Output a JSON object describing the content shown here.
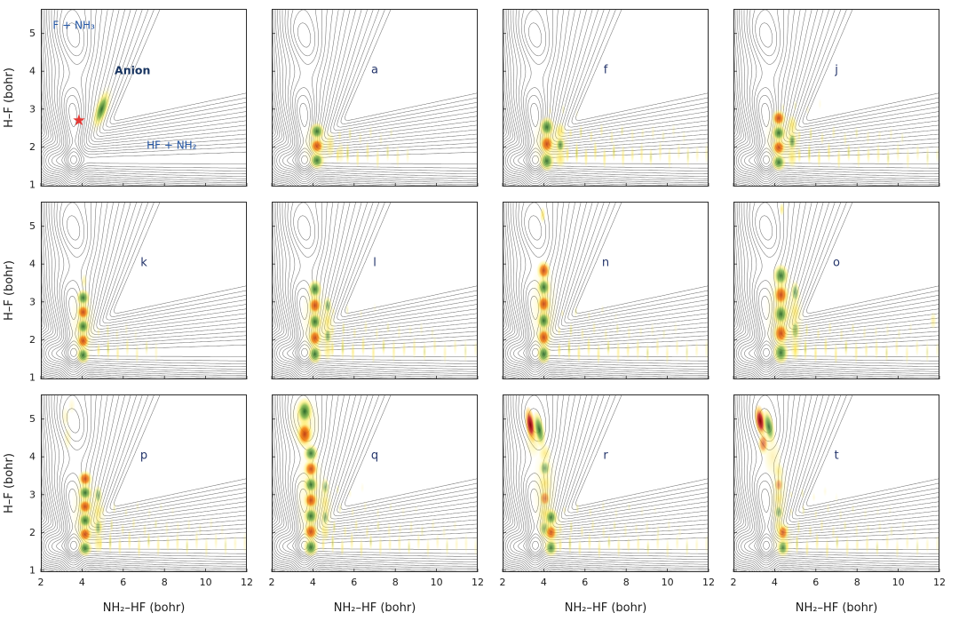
{
  "chart_data": {
    "type": "heatmap",
    "subtype": "multi-panel-contour-grid",
    "nrows": 3,
    "ncols": 4,
    "x_axis": {
      "label": "NH₂–HF (bohr)",
      "range": [
        2,
        12
      ],
      "ticks": [
        2,
        4,
        6,
        8,
        10,
        12
      ],
      "tick_labels": [
        "2",
        "4",
        "6",
        "8",
        "10",
        "12"
      ]
    },
    "y_axis": {
      "label": "H–F (bohr)",
      "range": [
        0.95,
        5.65
      ],
      "ticks": [
        1,
        2,
        3,
        4,
        5
      ],
      "tick_labels": [
        "1",
        "2",
        "3",
        "4",
        "5"
      ]
    },
    "pes_contours": {
      "description": "shared potential energy surface contour lines (reactant channel F+NH3 vertical near x=3.6, product channel HF+NH2 horizontal near y=1.6, high plateau upper right)",
      "levels": [
        -0.26,
        -0.16,
        -0.07,
        0.02,
        0.12,
        0.25,
        0.4,
        0.6,
        0.85,
        1.15,
        1.5,
        1.9,
        2.35,
        2.85,
        3.4,
        4.0,
        4.65,
        5.35
      ]
    },
    "palette": {
      "lobe_green": "#1b5e20",
      "lobe_green_mid": "#7cb342",
      "lobe_orange": "#bf360c",
      "lobe_orange_mid": "#f57c00",
      "lobe_red": "#7f0000",
      "lobe_red_mid": "#c62828",
      "lobe_red_halo": "#ffb300",
      "halo_yellow": "#ffee58",
      "halo_gold": "#fdd835",
      "contour_line": "#5a5a5a",
      "panel_border": "#2b2b2b",
      "star_red": "#e53935",
      "annotation_blue": "#2456a4",
      "annotation_navy": "#17335f",
      "label_navy": "#24356b",
      "axis_text": "#1a1a1a"
    },
    "panels": [
      {
        "name": "overview",
        "label": "",
        "annotations": [
          {
            "text": "F + NH₃",
            "x": 3.6,
            "y": 5.12,
            "color": "#2456a4",
            "size": 12
          },
          {
            "text": "Anion",
            "x": 6.45,
            "y": 3.92,
            "color": "#17335f",
            "size": 12.5,
            "bold": true
          },
          {
            "text": "HF + NH₂",
            "x": 8.35,
            "y": 1.95,
            "color": "#2456a4",
            "size": 12
          }
        ],
        "star": {
          "x": 3.85,
          "y": 2.7
        },
        "blobs": [
          {
            "x": 4.95,
            "y": 3.0,
            "rx": 0.45,
            "ry": 0.7,
            "rot": 18,
            "color": "yellow",
            "op": 0.4
          },
          {
            "x": 4.95,
            "y": 3.0,
            "rx": 0.3,
            "ry": 0.52,
            "rot": 18,
            "color": "green",
            "op": 0.95
          }
        ]
      },
      {
        "name": "a",
        "label": "a",
        "stacks": [
          {
            "x": 4.2,
            "y0": 1.45,
            "y1": 2.6,
            "n": 3,
            "rx": 0.38,
            "colors": [
              "green",
              "orange",
              "green"
            ]
          }
        ],
        "blobs": [
          {
            "x": 4.85,
            "y": 2.05,
            "rx": 0.22,
            "ry": 0.38,
            "color": "yellow",
            "op": 0.6
          },
          {
            "x": 5.35,
            "y": 1.85,
            "rx": 0.18,
            "ry": 0.3,
            "color": "yellow",
            "op": 0.5
          }
        ],
        "combs": [
          {
            "x0": 5.2,
            "x1": 8.6,
            "y": 1.78,
            "n": 8,
            "ry": 0.3,
            "op": 0.7
          },
          {
            "x0": 5.3,
            "x1": 7.8,
            "y": 2.3,
            "n": 6,
            "ry": 0.2,
            "op": 0.4
          }
        ]
      },
      {
        "name": "f",
        "label": "f",
        "stacks": [
          {
            "x": 4.15,
            "y0": 1.4,
            "y1": 2.75,
            "n": 3,
            "rx": 0.38,
            "colors": [
              "green",
              "orange",
              "green"
            ]
          },
          {
            "x": 4.8,
            "y0": 1.5,
            "y1": 2.6,
            "n": 3,
            "rx": 0.24,
            "colors": [
              "yellow",
              "green",
              "yellow"
            ],
            "op": 0.75
          }
        ],
        "combs": [
          {
            "x0": 5.15,
            "x1": 11.9,
            "y": 1.8,
            "n": 16,
            "ry": 0.3,
            "op": 0.75
          },
          {
            "x0": 5.3,
            "x1": 10.8,
            "y": 2.35,
            "n": 12,
            "ry": 0.2,
            "op": 0.45
          },
          {
            "x0": 4.3,
            "x1": 5.6,
            "y": 2.95,
            "n": 3,
            "ry": 0.15,
            "op": 0.3
          }
        ]
      },
      {
        "name": "j",
        "label": "j",
        "stacks": [
          {
            "x": 4.2,
            "y0": 1.4,
            "y1": 2.95,
            "n": 4,
            "rx": 0.36
          },
          {
            "x": 4.85,
            "y0": 1.5,
            "y1": 2.8,
            "n": 3,
            "rx": 0.22,
            "colors": [
              "yellow",
              "green",
              "yellow"
            ],
            "op": 0.7
          }
        ],
        "combs": [
          {
            "x0": 5.2,
            "x1": 11.9,
            "y": 1.78,
            "n": 15,
            "ry": 0.3,
            "op": 0.7
          },
          {
            "x0": 5.2,
            "x1": 10.2,
            "y": 2.3,
            "n": 10,
            "ry": 0.2,
            "op": 0.45
          },
          {
            "x0": 4.4,
            "x1": 6.2,
            "y": 3.05,
            "n": 4,
            "ry": 0.15,
            "op": 0.3
          }
        ]
      },
      {
        "name": "k",
        "label": "k",
        "stacks": [
          {
            "x": 4.05,
            "y0": 1.4,
            "y1": 3.3,
            "n": 5,
            "rx": 0.34
          }
        ],
        "blobs": [
          {
            "x": 4.1,
            "y": 3.55,
            "rx": 0.15,
            "ry": 0.2,
            "color": "yellow",
            "op": 0.5
          }
        ],
        "combs": [
          {
            "x0": 4.8,
            "x1": 7.6,
            "y": 1.72,
            "n": 7,
            "ry": 0.28,
            "op": 0.65
          },
          {
            "x0": 4.8,
            "x1": 6.6,
            "y": 2.2,
            "n": 5,
            "ry": 0.2,
            "op": 0.35
          }
        ]
      },
      {
        "name": "l",
        "label": "l",
        "stacks": [
          {
            "x": 4.1,
            "y0": 1.4,
            "y1": 3.55,
            "n": 5,
            "rx": 0.35
          },
          {
            "x": 4.72,
            "y0": 1.5,
            "y1": 3.1,
            "n": 4,
            "rx": 0.2,
            "colors": [
              "yellow",
              "green"
            ],
            "op": 0.6
          }
        ],
        "combs": [
          {
            "x0": 4.95,
            "x1": 11.9,
            "y": 1.75,
            "n": 15,
            "ry": 0.3,
            "op": 0.7
          },
          {
            "x0": 4.95,
            "x1": 9.8,
            "y": 2.25,
            "n": 10,
            "ry": 0.2,
            "op": 0.4
          },
          {
            "x0": 5.0,
            "x1": 7.0,
            "y": 2.75,
            "n": 4,
            "ry": 0.15,
            "op": 0.3
          }
        ]
      },
      {
        "name": "n",
        "label": "n",
        "stacks": [
          {
            "x": 4.0,
            "y0": 1.4,
            "y1": 4.05,
            "n": 6,
            "rx": 0.35
          }
        ],
        "blobs": [
          {
            "x": 3.95,
            "y": 5.3,
            "rx": 0.13,
            "ry": 0.22,
            "color": "yellow",
            "op": 0.8
          }
        ],
        "combs": [
          {
            "x0": 4.75,
            "x1": 11.9,
            "y": 1.72,
            "n": 16,
            "ry": 0.3,
            "op": 0.7
          },
          {
            "x0": 4.75,
            "x1": 10.4,
            "y": 2.22,
            "n": 11,
            "ry": 0.2,
            "op": 0.4
          },
          {
            "x0": 4.9,
            "x1": 7.5,
            "y": 2.7,
            "n": 5,
            "ry": 0.15,
            "op": 0.3
          }
        ]
      },
      {
        "name": "o",
        "label": "o",
        "stacks": [
          {
            "x": 4.3,
            "y0": 1.4,
            "y1": 3.95,
            "n": 5,
            "rx": 0.4
          },
          {
            "x": 5.0,
            "y0": 1.5,
            "y1": 3.5,
            "n": 4,
            "rx": 0.22,
            "colors": [
              "yellow",
              "green"
            ],
            "op": 0.6
          }
        ],
        "blobs": [
          {
            "x": 4.35,
            "y": 5.45,
            "rx": 0.12,
            "ry": 0.18,
            "color": "yellow",
            "op": 0.7
          },
          {
            "x": 11.7,
            "y": 2.5,
            "rx": 0.15,
            "ry": 0.25,
            "color": "yellow",
            "op": 0.5
          }
        ],
        "combs": [
          {
            "x0": 5.0,
            "x1": 11.9,
            "y": 1.72,
            "n": 15,
            "ry": 0.3,
            "op": 0.7
          },
          {
            "x0": 5.0,
            "x1": 10.6,
            "y": 2.22,
            "n": 11,
            "ry": 0.2,
            "op": 0.4
          }
        ]
      },
      {
        "name": "p",
        "label": "p",
        "stacks": [
          {
            "x": 4.15,
            "y0": 1.4,
            "y1": 3.6,
            "n": 6,
            "rx": 0.36
          },
          {
            "x": 4.78,
            "y0": 1.5,
            "y1": 3.2,
            "n": 4,
            "rx": 0.2,
            "colors": [
              "yellow",
              "green"
            ],
            "op": 0.55
          }
        ],
        "blobs": [
          {
            "x": 3.3,
            "y": 4.5,
            "rx": 0.2,
            "ry": 0.35,
            "color": "yellow",
            "op": 0.35
          },
          {
            "x": 3.2,
            "y": 5.05,
            "rx": 0.22,
            "ry": 0.3,
            "color": "yellow",
            "op": 0.3
          },
          {
            "x": 3.5,
            "y": 5.35,
            "rx": 0.18,
            "ry": 0.22,
            "color": "yellow",
            "op": 0.25
          }
        ],
        "combs": [
          {
            "x0": 4.9,
            "x1": 11.9,
            "y": 1.7,
            "n": 16,
            "ry": 0.3,
            "op": 0.65
          },
          {
            "x0": 4.9,
            "x1": 10.8,
            "y": 2.15,
            "n": 12,
            "ry": 0.2,
            "op": 0.4
          },
          {
            "x0": 5.0,
            "x1": 8.4,
            "y": 2.6,
            "n": 7,
            "ry": 0.15,
            "op": 0.3
          }
        ]
      },
      {
        "name": "q",
        "label": "q",
        "stacks": [
          {
            "x": 3.6,
            "y0": 4.3,
            "y1": 5.5,
            "n": 2,
            "rx": 0.42,
            "colors": [
              "orange",
              "green"
            ],
            "op": 1
          },
          {
            "x": 3.9,
            "y0": 1.4,
            "y1": 4.3,
            "n": 7,
            "rx": 0.38
          },
          {
            "x": 4.6,
            "y0": 1.8,
            "y1": 3.4,
            "n": 4,
            "rx": 0.2,
            "colors": [
              "yellow",
              "green"
            ],
            "op": 0.5
          }
        ],
        "combs": [
          {
            "x0": 4.5,
            "x1": 11.9,
            "y": 1.68,
            "n": 17,
            "ry": 0.28,
            "op": 0.6
          },
          {
            "x0": 4.5,
            "x1": 10.9,
            "y": 2.1,
            "n": 13,
            "ry": 0.2,
            "op": 0.45
          },
          {
            "x0": 4.7,
            "x1": 9.0,
            "y": 2.6,
            "n": 8,
            "ry": 0.16,
            "op": 0.3
          },
          {
            "x0": 4.6,
            "x1": 6.4,
            "y": 3.1,
            "n": 4,
            "ry": 0.14,
            "op": 0.3
          }
        ]
      },
      {
        "name": "r",
        "label": "r",
        "blobs": [
          {
            "x": 3.5,
            "y": 4.45,
            "rx": 0.4,
            "ry": 0.5,
            "color": "yellow",
            "op": 0.5
          },
          {
            "x": 3.35,
            "y": 4.85,
            "rx": 0.26,
            "ry": 0.5,
            "rot": -8,
            "color": "red",
            "op": 1
          },
          {
            "x": 3.78,
            "y": 4.72,
            "rx": 0.28,
            "ry": 0.52,
            "rot": -10,
            "color": "green",
            "op": 0.95
          }
        ],
        "stacks": [
          {
            "x": 4.05,
            "y0": 1.9,
            "y1": 4.3,
            "n": 6,
            "rx": 0.3,
            "colors": [
              "green",
              "yellow",
              "orange",
              "yellow"
            ],
            "op": 0.6
          },
          {
            "x": 4.35,
            "y0": 1.4,
            "y1": 2.6,
            "n": 3,
            "rx": 0.34,
            "op": 0.85
          }
        ],
        "combs": [
          {
            "x0": 4.8,
            "x1": 11.9,
            "y": 1.66,
            "n": 16,
            "ry": 0.28,
            "op": 0.6
          },
          {
            "x0": 4.8,
            "x1": 10.6,
            "y": 2.1,
            "n": 12,
            "ry": 0.2,
            "op": 0.4
          },
          {
            "x0": 5.0,
            "x1": 9.4,
            "y": 2.6,
            "n": 8,
            "ry": 0.16,
            "op": 0.3
          }
        ]
      },
      {
        "name": "t",
        "label": "t",
        "blobs": [
          {
            "x": 3.9,
            "y": 4.0,
            "rx": 0.45,
            "ry": 0.55,
            "color": "yellow",
            "op": 0.4
          },
          {
            "x": 3.3,
            "y": 4.95,
            "rx": 0.28,
            "ry": 0.45,
            "rot": -8,
            "color": "red",
            "op": 1
          },
          {
            "x": 3.72,
            "y": 4.8,
            "rx": 0.28,
            "ry": 0.5,
            "rot": -10,
            "color": "green",
            "op": 0.9
          },
          {
            "x": 3.45,
            "y": 4.35,
            "rx": 0.28,
            "ry": 0.32,
            "color": "orange",
            "op": 0.7
          }
        ],
        "stacks": [
          {
            "x": 4.2,
            "y0": 2.0,
            "y1": 3.8,
            "n": 5,
            "rx": 0.24,
            "colors": [
              "yellow",
              "green",
              "yellow",
              "orange"
            ],
            "op": 0.5
          },
          {
            "x": 4.4,
            "y0": 1.4,
            "y1": 2.2,
            "n": 2,
            "rx": 0.3,
            "op": 0.8
          }
        ],
        "combs": [
          {
            "x0": 4.6,
            "x1": 11.9,
            "y": 1.66,
            "n": 16,
            "ry": 0.28,
            "op": 0.6
          },
          {
            "x0": 4.6,
            "x1": 10.8,
            "y": 2.1,
            "n": 12,
            "ry": 0.2,
            "op": 0.4
          },
          {
            "x0": 4.8,
            "x1": 9.6,
            "y": 2.55,
            "n": 9,
            "ry": 0.16,
            "op": 0.3
          },
          {
            "x0": 4.8,
            "x1": 7.0,
            "y": 3.0,
            "n": 5,
            "ry": 0.14,
            "op": 0.28
          }
        ]
      }
    ]
  }
}
